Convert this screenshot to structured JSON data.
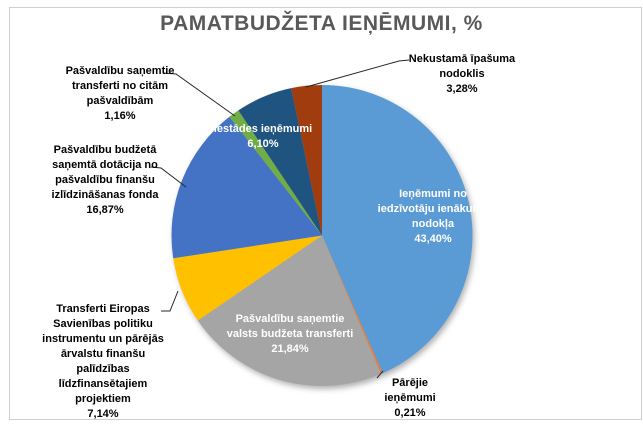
{
  "chart_data": {
    "type": "pie",
    "title": "PAMATBUDŽETA IEŅĒMUMI, %",
    "unit": "%",
    "start_angle_deg": 0,
    "direction": "clockwise",
    "legend": "none",
    "slices": [
      {
        "label": "Ieņēmumi no iedzīvotāju ienākuma nodokļa",
        "value": 43.4,
        "display": "43,40%",
        "color": "#5B9BD5",
        "label_position": "inside"
      },
      {
        "label": "Pārējie ieņēmumi",
        "value": 0.21,
        "display": "0,21%",
        "color": "#ED7D31",
        "label_position": "outside-bottom-right"
      },
      {
        "label": "Pašvaldību saņemtie valsts budžeta transferti",
        "value": 21.84,
        "display": "21,84%",
        "color": "#A5A5A5",
        "label_position": "inside"
      },
      {
        "label": "Transferti Eiropas Savienības politiku instrumentu un pārējās ārvalstu finanšu palīdzības līdzfinansētajiem projektiem",
        "value": 7.14,
        "display": "7,14%",
        "color": "#FFC000",
        "label_position": "outside-bottom-left"
      },
      {
        "label": "Pašvaldību budžetā saņemtā dotācija no pašvaldību finanšu izlīdzināšanas fonda",
        "value": 16.87,
        "display": "16,87%",
        "color": "#4472C4",
        "label_position": "outside-left"
      },
      {
        "label": "Pašvaldību saņemtie transferti no citām pašvaldībām",
        "value": 1.16,
        "display": "1,16%",
        "color": "#70AD47",
        "label_position": "outside-top-left"
      },
      {
        "label": "Iestādes ieņēmumi",
        "value": 6.1,
        "display": "6,10%",
        "color": "#1F5380",
        "label_position": "inside"
      },
      {
        "label": "Nekustamā īpašuma nodoklis",
        "value": 3.28,
        "display": "3,28%",
        "color": "#A03C0E",
        "label_position": "outside-top-right"
      }
    ]
  },
  "display_labels": {
    "iin": "Ieņēmumi no\niedzīvotāju ienākuma\nnodokļa\n43,40%",
    "parejie": "Pārējie\nieņēmumi\n0,21%",
    "valsts_transferti": "Pašvaldību saņemtie\nvalsts budžeta transferti\n21,84%",
    "transferti_es": "Transferti Eiropas\nSavienības politiku\ninstrumentu un pārējās\nārvalstu finanšu\npalīdzības\nlīdzfinansētajiem\nprojektiem\n7,14%",
    "dotacija": "Pašvaldību budžetā\nsaņemtā dotācija no\npašvaldību finanšu\nizlīdzināšanas fonda\n16,87%",
    "citam_pasvaldibam": "Pašvaldību saņemtie\ntransferti no citām\npašvaldībām\n1,16%",
    "iestades": "Iestādes ieņēmumi\n6,10%",
    "nekustama": "Nekustamā īpašuma\nnodoklis\n3,28%"
  }
}
